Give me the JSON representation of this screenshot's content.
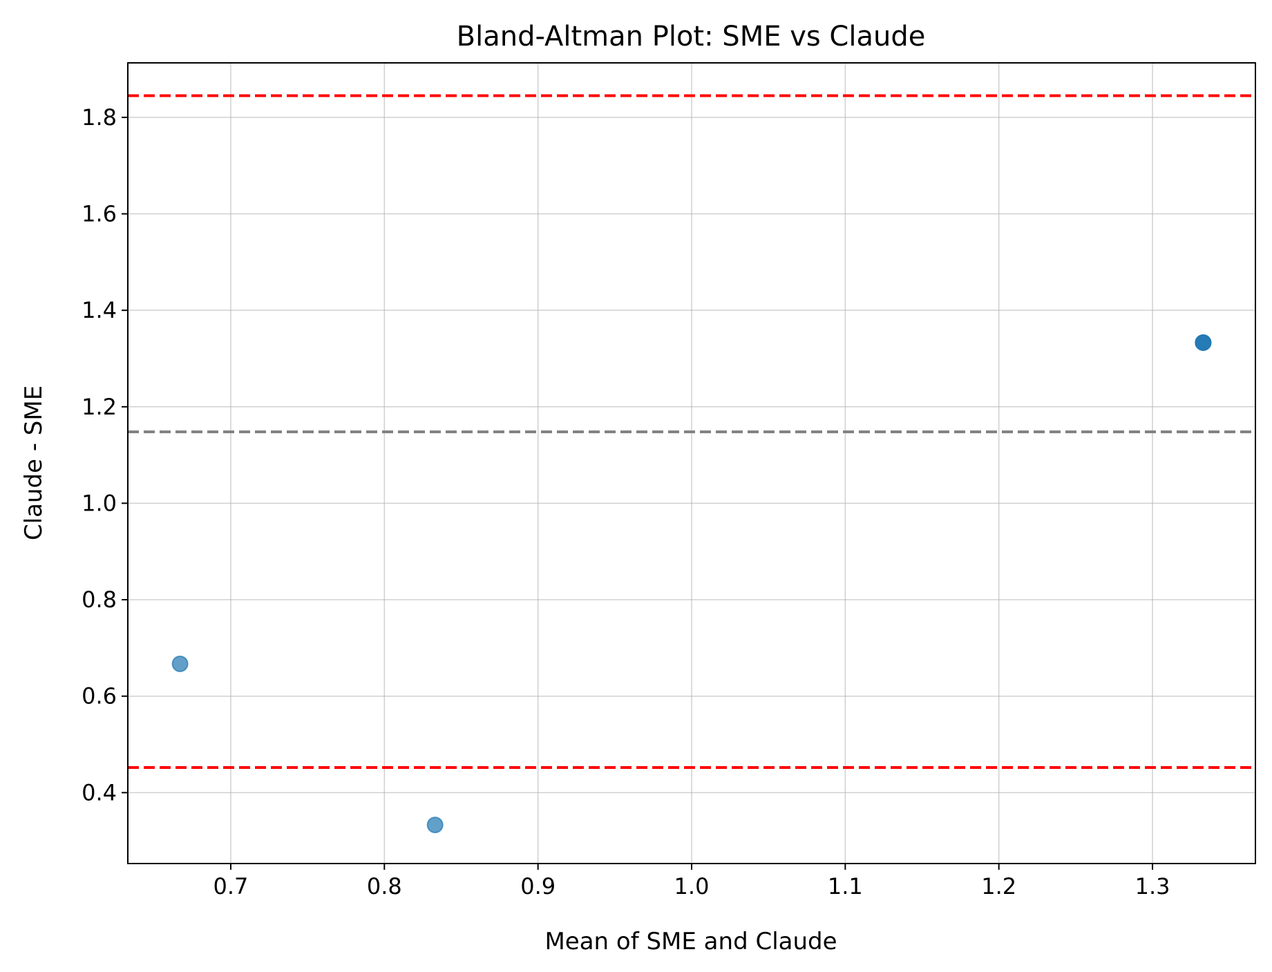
{
  "chart_data": {
    "type": "scatter",
    "title": "Bland-Altman Plot: SME vs Claude",
    "xlabel": "Mean of SME and Claude",
    "ylabel": "Claude - SME",
    "xlim": [
      0.633,
      1.367
    ],
    "ylim": [
      0.253,
      1.913
    ],
    "x_ticks": [
      0.7,
      0.8,
      0.9,
      1.0,
      1.1,
      1.2,
      1.3
    ],
    "x_tick_labels": [
      "0.7",
      "0.8",
      "0.9",
      "1.0",
      "1.1",
      "1.2",
      "1.3"
    ],
    "y_ticks": [
      0.4,
      0.6,
      0.8,
      1.0,
      1.2,
      1.4,
      1.6,
      1.8
    ],
    "y_tick_labels": [
      "0.4",
      "0.6",
      "0.8",
      "1.0",
      "1.2",
      "1.4",
      "1.6",
      "1.8"
    ],
    "grid": true,
    "points": [
      {
        "x": 0.667,
        "y": 0.667,
        "count": 1
      },
      {
        "x": 0.833,
        "y": 0.333,
        "count": 1
      },
      {
        "x": 1.333,
        "y": 1.333,
        "count": 3
      }
    ],
    "reference_lines": [
      {
        "role": "mean-difference",
        "y": 1.148,
        "color": "#808080",
        "style": "dashed"
      },
      {
        "role": "upper-limit-of-agreement",
        "y": 1.845,
        "color": "#ff0000",
        "style": "dashed"
      },
      {
        "role": "lower-limit-of-agreement",
        "y": 0.452,
        "color": "#ff0000",
        "style": "dashed"
      }
    ],
    "colors": {
      "points": "#1f77b4",
      "grid": "#b0b0b0"
    }
  }
}
